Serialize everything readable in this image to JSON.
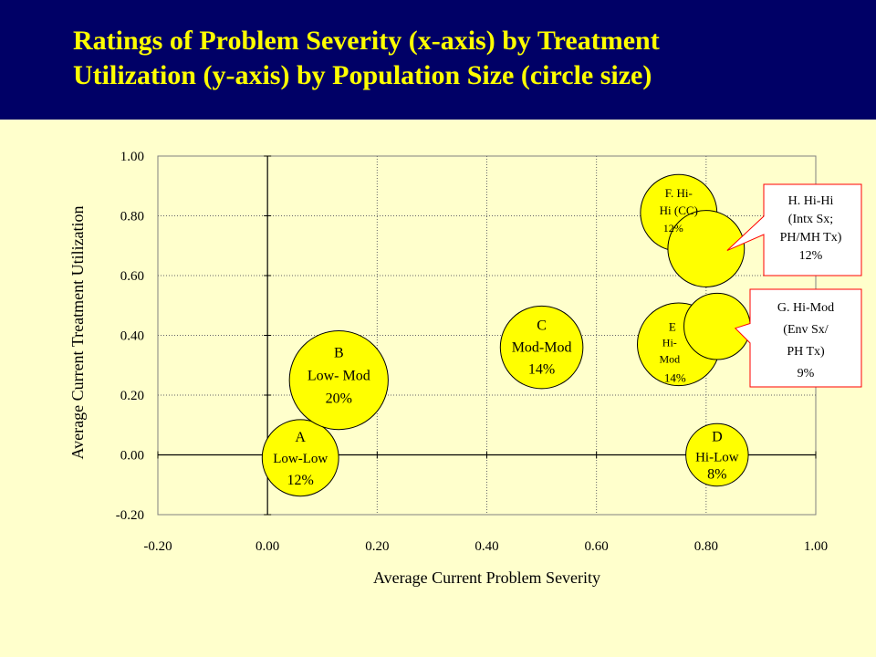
{
  "title": {
    "line1": "Ratings of Problem Severity (x-axis)  by Treatment",
    "line2": "Utilization  (y-axis) by Population Size (circle size)"
  },
  "colors": {
    "title_bg": "#000066",
    "title_text": "#FFFF00",
    "page_bg": "#FFFFCC",
    "bubble_fill": "#FFFF00",
    "callout_border": "#FF0000"
  },
  "chart_data": {
    "type": "scatter",
    "subtype": "bubble",
    "xlabel": "Average Current Problem Severity",
    "ylabel": "Average Current Treatment Utilization",
    "xlim": [
      -0.2,
      1.0
    ],
    "ylim": [
      -0.2,
      1.0
    ],
    "xticks": [
      "-0.20",
      "0.00",
      "0.20",
      "0.40",
      "0.60",
      "0.80",
      "1.00"
    ],
    "yticks": [
      "1.00",
      "0.80",
      "0.60",
      "0.40",
      "0.20",
      "0.00",
      "-0.20"
    ],
    "grid": true,
    "points": [
      {
        "id": "A",
        "x": 0.06,
        "y": -0.01,
        "size_pct": 12,
        "label_lines": [
          "A",
          "Low-Low",
          "12%"
        ]
      },
      {
        "id": "B",
        "x": 0.13,
        "y": 0.25,
        "size_pct": 20,
        "label_lines": [
          "B",
          "Low- Mod",
          "20%"
        ]
      },
      {
        "id": "C",
        "x": 0.5,
        "y": 0.36,
        "size_pct": 14,
        "label_lines": [
          "C",
          "Mod-Mod",
          "14%"
        ]
      },
      {
        "id": "D",
        "x": 0.82,
        "y": 0.0,
        "size_pct": 8,
        "label_lines": [
          "D",
          "Hi-Low",
          "8%"
        ]
      },
      {
        "id": "E",
        "x": 0.75,
        "y": 0.37,
        "size_pct": 14,
        "label_lines": [
          "E",
          "Hi-",
          "Mod",
          "14%"
        ]
      },
      {
        "id": "F",
        "x": 0.75,
        "y": 0.81,
        "size_pct": 12,
        "label_lines": [
          "F. Hi-",
          "Hi (CC)",
          "12%"
        ]
      },
      {
        "id": "G",
        "x": 0.82,
        "y": 0.43,
        "size_pct": 9,
        "label_lines": []
      },
      {
        "id": "H",
        "x": 0.8,
        "y": 0.69,
        "size_pct": 12,
        "label_lines": []
      }
    ],
    "callouts": [
      {
        "id": "H",
        "lines": [
          "H. Hi-Hi",
          "(Intx Sx;",
          "PH/MH Tx)",
          "12%"
        ]
      },
      {
        "id": "G",
        "lines": [
          "G. Hi-Mod",
          "(Env Sx/",
          "PH Tx)",
          "9%"
        ]
      }
    ]
  }
}
